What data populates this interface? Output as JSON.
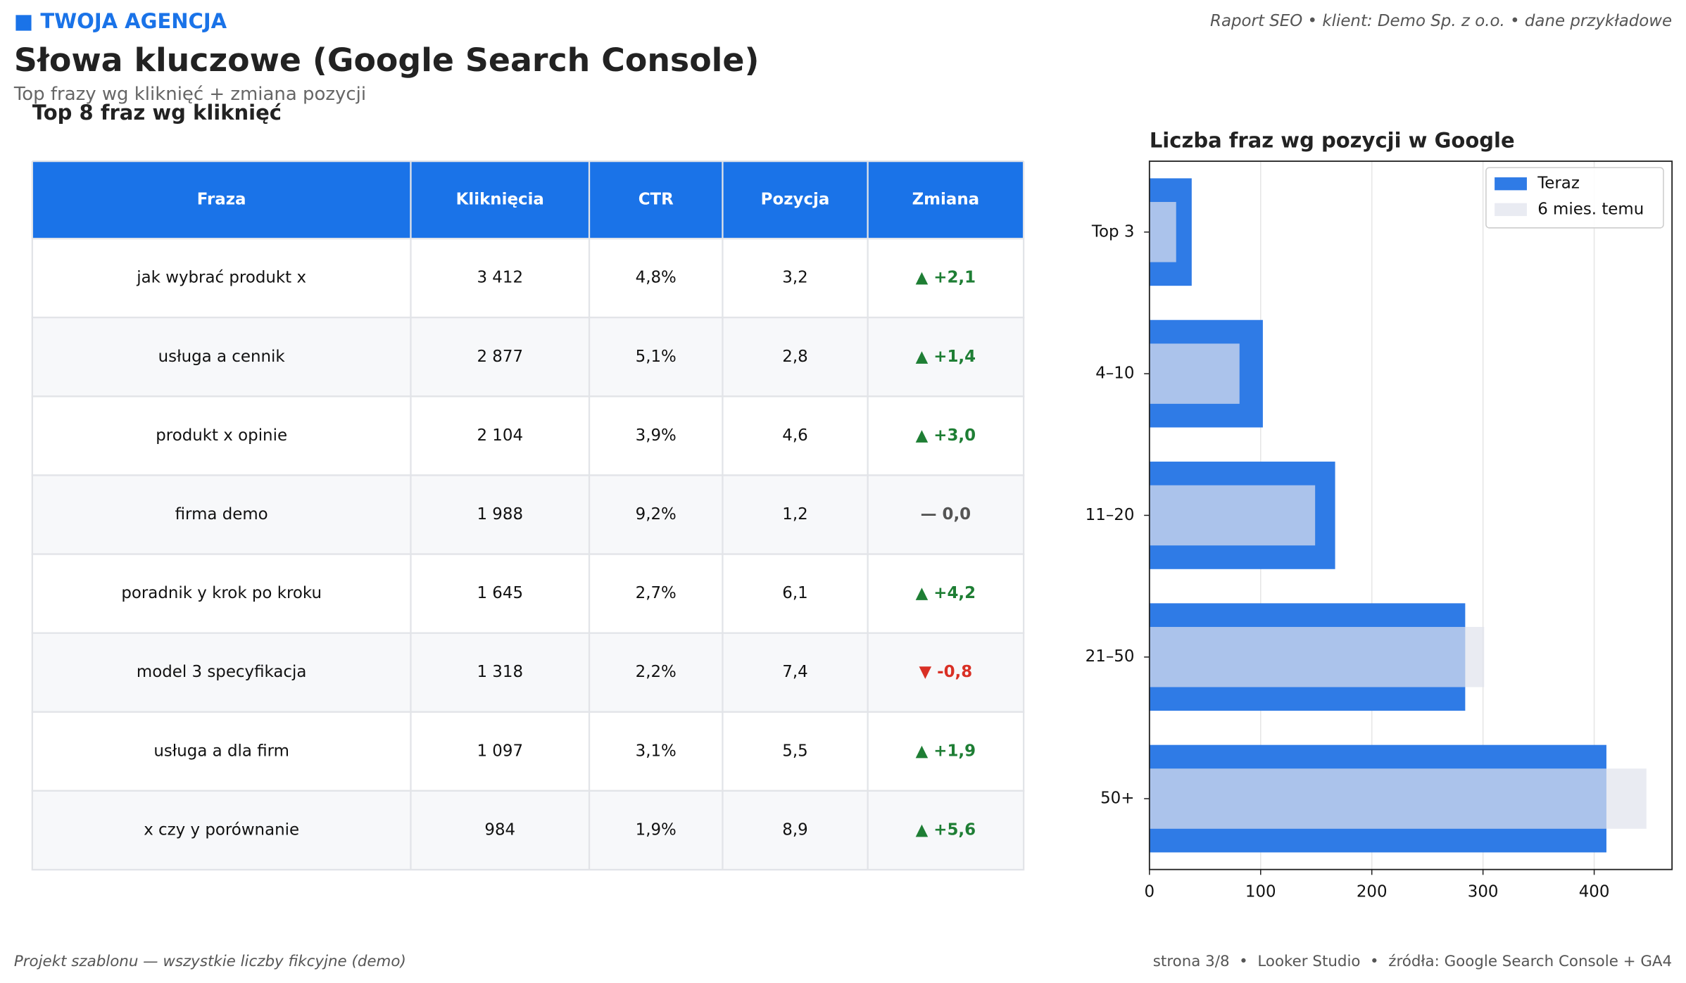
{
  "header": {
    "brand": "■ TWOJA AGENCJA",
    "meta": "Raport SEO • klient: Demo Sp. z o.o. • dane przykładowe",
    "title": "Słowa kluczowe (Google Search Console)",
    "subtitle": "Top frazy wg kliknięć + zmiana pozycji"
  },
  "table": {
    "title": "Top 8 fraz wg kliknięć",
    "columns": [
      "Fraza",
      "Kliknięcia",
      "CTR",
      "Pozycja",
      "Zmiana"
    ],
    "rows": [
      [
        "jak wybrać produkt x",
        "3 412",
        "4,8%",
        "3,2",
        "▲ +2,1"
      ],
      [
        "usługa a cennik",
        "2 877",
        "5,1%",
        "2,8",
        "▲ +1,4"
      ],
      [
        "produkt x opinie",
        "2 104",
        "3,9%",
        "4,6",
        "▲ +3,0"
      ],
      [
        "firma demo",
        "1 988",
        "9,2%",
        "1,2",
        "— 0,0"
      ],
      [
        "poradnik y krok po kroku",
        "1 645",
        "2,7%",
        "6,1",
        "▲ +4,2"
      ],
      [
        "model 3 specyfikacja",
        "1 318",
        "2,2%",
        "7,4",
        "▼ -0,8"
      ],
      [
        "usługa a dla firm",
        "1 097",
        "3,1%",
        "5,5",
        "▲ +1,9"
      ],
      [
        "x czy y porównanie",
        "984",
        "1,9%",
        "8,9",
        "▲ +5,6"
      ]
    ]
  },
  "chart_data": {
    "type": "bar",
    "orientation": "horizontal",
    "title": "Liczba fraz wg pozycji w Google",
    "categories": [
      "Top 3",
      "4–10",
      "11–20",
      "21–50",
      "50+"
    ],
    "series": [
      {
        "name": "Teraz",
        "color": "#2f7be6",
        "values": [
          38,
          102,
          167,
          284,
          411
        ]
      },
      {
        "name": "6 mies. temu",
        "color": "#dfe3ec",
        "values": [
          24,
          81,
          149,
          301,
          447
        ]
      }
    ],
    "xlim": [
      0,
      470
    ],
    "xticks": [
      0,
      100,
      200,
      300,
      400
    ],
    "grid": true,
    "legend": "upper right"
  },
  "footer": {
    "left": "Projekt szablonu — wszystkie liczby fikcyjne (demo)",
    "right": "strona 3/8  •  Looker Studio  •  źródła: Google Search Console + GA4"
  }
}
